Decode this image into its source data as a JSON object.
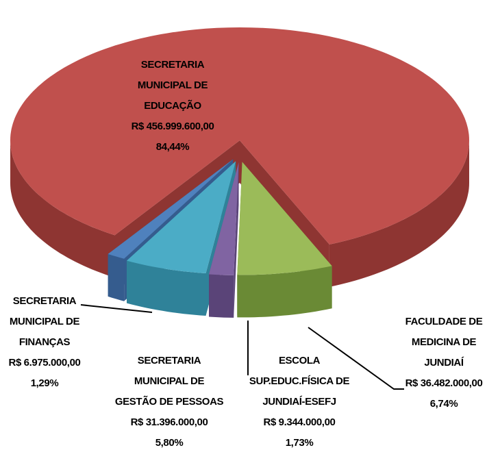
{
  "chart_data": {
    "type": "pie",
    "three_d": true,
    "categories": [
      [
        "SECRETARIA",
        "MUNICIPAL DE",
        "EDUCAÇÃO"
      ],
      [
        "FACULDADE DE",
        "MEDICINA DE",
        "JUNDIAÍ"
      ],
      [
        "ESCOLA",
        "SUP.EDUC.FÍSICA DE",
        "JUNDIAÍ-ESEFJ"
      ],
      [
        "SECRETARIA",
        "MUNICIPAL DE",
        "GESTÃO DE PESSOAS"
      ],
      [
        "SECRETARIA",
        "MUNICIPAL DE",
        "FINANÇAS"
      ]
    ],
    "values": [
      456999600,
      36482000,
      9344000,
      31396000,
      6975000
    ],
    "value_labels": [
      "R$ 456.999.600,00",
      "R$ 36.482.000,00",
      "R$ 9.344.000,00",
      "R$ 31.396.000,00",
      "R$ 6.975.000,00"
    ],
    "percentages": [
      84.44,
      6.74,
      1.73,
      5.8,
      1.29
    ],
    "percentage_labels": [
      "84,44%",
      "6,74%",
      "1,73%",
      "5,80%",
      "1,29%"
    ],
    "colors": [
      "#c0504d",
      "#9bbb59",
      "#8064a2",
      "#4bacc6",
      "#4f81bd"
    ],
    "side_colors": [
      "#8e3532",
      "#6a8a35",
      "#5a4478",
      "#2f8299",
      "#355c8e"
    ]
  }
}
